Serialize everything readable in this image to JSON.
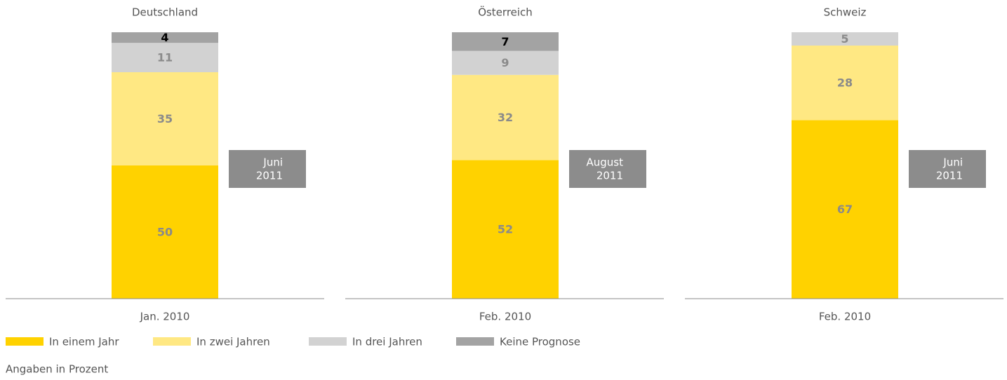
{
  "chart_data": {
    "type": "bar",
    "stacked": true,
    "titles": [
      "Deutschland",
      "Österreich",
      "Schweiz"
    ],
    "categories": [
      "Jan. 2010",
      "Feb. 2010",
      "Feb. 2010"
    ],
    "annotations": [
      [
        "Juni",
        "2011"
      ],
      [
        "August",
        "2011"
      ],
      [
        "Juni",
        "2011"
      ]
    ],
    "series": [
      {
        "name": "In einem Jahr",
        "color": "#ffd200",
        "label_color": "#8a8a8a",
        "values": [
          50,
          52,
          67
        ]
      },
      {
        "name": "In zwei Jahren",
        "color": "#ffe883",
        "label_color": "#8a8a8a",
        "values": [
          35,
          32,
          28
        ]
      },
      {
        "name": "In drei Jahren",
        "color": "#d2d2d2",
        "label_color": "#8a8a8a",
        "values": [
          11,
          9,
          5
        ]
      },
      {
        "name": "Keine Prognose",
        "color": "#a3a3a3",
        "label_color": "#000000",
        "values": [
          4,
          7,
          null
        ]
      }
    ],
    "ylim": [
      0,
      100
    ],
    "note": "Angaben in Prozent"
  }
}
